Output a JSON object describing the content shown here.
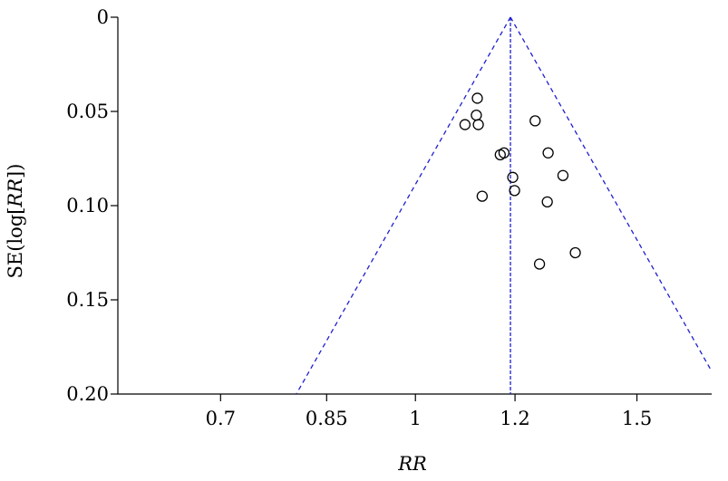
{
  "chart_data": {
    "type": "scatter",
    "title": "",
    "xlabel": "RR",
    "ylabel_prefix": "SE(log[",
    "ylabel_em": "RR",
    "ylabel_suffix": "])",
    "x_scale": "log",
    "xlim": [
      0.58,
      1.72
    ],
    "ylim": [
      0,
      0.2
    ],
    "y_inverted": true,
    "x_ticks": [
      {
        "value": 0.7,
        "label": "0.7"
      },
      {
        "value": 0.85,
        "label": "0.85"
      },
      {
        "value": 1,
        "label": "1"
      },
      {
        "value": 1.2,
        "label": "1.2"
      },
      {
        "value": 1.5,
        "label": "1.5"
      }
    ],
    "y_ticks": [
      {
        "value": 0,
        "label": "0"
      },
      {
        "value": 0.05,
        "label": "0.05"
      },
      {
        "value": 0.1,
        "label": "0.10"
      },
      {
        "value": 0.15,
        "label": "0.15"
      },
      {
        "value": 0.2,
        "label": "0.20"
      }
    ],
    "pooled_rr": 1.19,
    "funnel_color": "#1f1fd0",
    "points": [
      {
        "x": 1.12,
        "y": 0.043
      },
      {
        "x": 1.118,
        "y": 0.052
      },
      {
        "x": 1.122,
        "y": 0.057
      },
      {
        "x": 1.095,
        "y": 0.057
      },
      {
        "x": 1.245,
        "y": 0.055
      },
      {
        "x": 1.168,
        "y": 0.073
      },
      {
        "x": 1.176,
        "y": 0.072
      },
      {
        "x": 1.275,
        "y": 0.072
      },
      {
        "x": 1.195,
        "y": 0.085
      },
      {
        "x": 1.31,
        "y": 0.084
      },
      {
        "x": 1.199,
        "y": 0.092
      },
      {
        "x": 1.13,
        "y": 0.095
      },
      {
        "x": 1.273,
        "y": 0.098
      },
      {
        "x": 1.34,
        "y": 0.125
      },
      {
        "x": 1.255,
        "y": 0.131
      }
    ]
  }
}
